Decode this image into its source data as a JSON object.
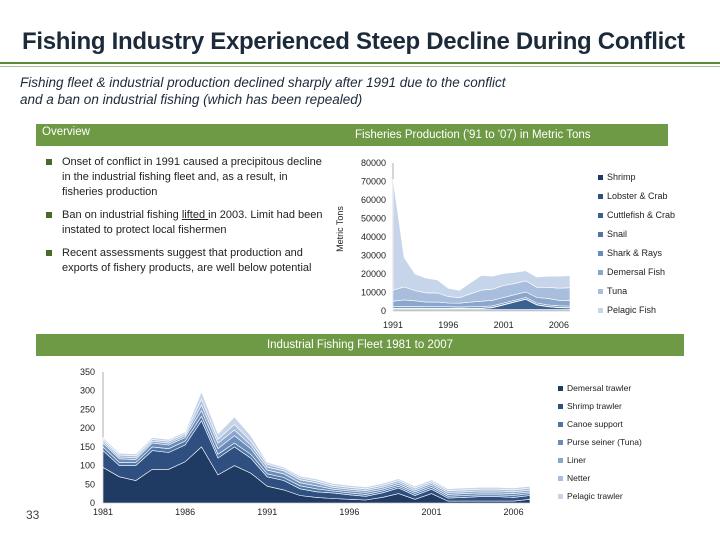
{
  "slide": {
    "title": "Fishing Industry Experienced Steep Decline During Conflict",
    "subtitle_line1": "Fishing fleet & industrial production declined sharply after 1991 due to the conflict",
    "subtitle_line2": "and a ban on industrial fishing (which has been repealed)",
    "page_number": "33"
  },
  "overview": {
    "heading": "Overview",
    "bullets": [
      {
        "text": "Onset of conflict in 1991 caused a precipitous decline in the industrial fishing fleet and, as a result, in fisheries production"
      },
      {
        "pre": "Ban on industrial fishing ",
        "underlined": "lifted ",
        "post": "in 2003. Limit had been instated to protect local fishermen"
      },
      {
        "text": "Recent assessments suggest that production and exports of fishery products, are well below potential"
      }
    ]
  },
  "colors": {
    "accent": "#6f9a45",
    "navy": "#1c2a3a"
  },
  "chart_data": [
    {
      "type": "area",
      "title": "Fisheries Production ('91 to '07) in Metric Tons",
      "ylabel": "Metric Tons",
      "xlabel": "",
      "ylim": [
        0,
        80000
      ],
      "yticks": [
        0,
        10000,
        20000,
        30000,
        40000,
        50000,
        60000,
        70000,
        80000
      ],
      "xtick_labels": [
        "1991",
        "1996",
        "2001",
        "2006"
      ],
      "x": [
        1991,
        1992,
        1993,
        1994,
        1995,
        1996,
        1997,
        1998,
        1999,
        2000,
        2001,
        2002,
        2003,
        2004,
        2005,
        2006,
        2007
      ],
      "legend_position": "right",
      "series": [
        {
          "name": "Shrimp",
          "color": "#1f3a63",
          "values": [
            500,
            500,
            500,
            500,
            500,
            500,
            500,
            500,
            500,
            500,
            500,
            500,
            500,
            500,
            500,
            500,
            500
          ]
        },
        {
          "name": "Lobster & Crab",
          "color": "#2e4f80",
          "values": [
            300,
            300,
            300,
            300,
            300,
            300,
            300,
            300,
            300,
            300,
            300,
            300,
            300,
            300,
            300,
            300,
            300
          ]
        },
        {
          "name": "Cuttlefish & Crab",
          "color": "#3a6190",
          "values": [
            500,
            500,
            500,
            500,
            500,
            500,
            500,
            500,
            500,
            1000,
            2500,
            4000,
            5500,
            2500,
            1500,
            1000,
            800
          ]
        },
        {
          "name": "Snail",
          "color": "#4f75a5",
          "values": [
            200,
            200,
            200,
            200,
            200,
            200,
            200,
            200,
            200,
            200,
            200,
            200,
            200,
            200,
            200,
            200,
            200
          ]
        },
        {
          "name": "Shark & Rays",
          "color": "#6a8cba",
          "values": [
            800,
            1000,
            1000,
            800,
            800,
            800,
            700,
            800,
            800,
            800,
            800,
            800,
            800,
            800,
            800,
            800,
            800
          ]
        },
        {
          "name": "Demersal Fish",
          "color": "#8aa6cc",
          "values": [
            3000,
            3500,
            3000,
            2500,
            2500,
            2000,
            2000,
            2500,
            3000,
            3000,
            3000,
            3000,
            3000,
            3000,
            3500,
            3000,
            3000
          ]
        },
        {
          "name": "Tuna",
          "color": "#a9bedc",
          "values": [
            6000,
            7000,
            5500,
            5000,
            5000,
            3500,
            3000,
            4500,
            6000,
            6000,
            6500,
            6000,
            6000,
            5500,
            6000,
            6500,
            7000
          ]
        },
        {
          "name": "Pelagic Fish",
          "color": "#c7d5ea",
          "values": [
            60000,
            16000,
            9000,
            8000,
            7000,
            4500,
            4000,
            6000,
            8000,
            7000,
            6500,
            6000,
            5500,
            5500,
            6000,
            6500,
            6500
          ]
        }
      ]
    },
    {
      "type": "area",
      "title": "Industrial Fishing Fleet 1981 to 2007",
      "xlabel": "",
      "ylabel": "",
      "ylim": [
        0,
        350
      ],
      "yticks": [
        0,
        50,
        100,
        150,
        200,
        250,
        300,
        350
      ],
      "xtick_labels": [
        "1981",
        "1986",
        "1991",
        "1996",
        "2001",
        "2006"
      ],
      "x": [
        1981,
        1982,
        1983,
        1984,
        1985,
        1986,
        1987,
        1988,
        1989,
        1990,
        1991,
        1992,
        1993,
        1994,
        1995,
        1996,
        1997,
        1998,
        1999,
        2000,
        2001,
        2002,
        2003,
        2004,
        2005,
        2006,
        2007
      ],
      "legend_position": "right",
      "series": [
        {
          "name": "Demersal trawler",
          "color": "#1f3a63",
          "values": [
            95,
            70,
            60,
            90,
            90,
            110,
            150,
            75,
            100,
            80,
            45,
            35,
            20,
            15,
            12,
            10,
            8,
            15,
            25,
            10,
            25,
            5,
            5,
            5,
            5,
            5,
            10
          ]
        },
        {
          "name": "Shrimp trawler",
          "color": "#2e4f80",
          "values": [
            45,
            30,
            40,
            50,
            45,
            45,
            70,
            45,
            50,
            40,
            25,
            25,
            18,
            15,
            15,
            12,
            10,
            12,
            15,
            10,
            12,
            8,
            10,
            12,
            12,
            10,
            10
          ]
        },
        {
          "name": "Canoe support",
          "color": "#4f75a5",
          "values": [
            10,
            8,
            8,
            10,
            10,
            10,
            12,
            10,
            10,
            10,
            8,
            8,
            8,
            8,
            5,
            5,
            5,
            5,
            5,
            5,
            5,
            5,
            5,
            5,
            5,
            5,
            5
          ]
        },
        {
          "name": "Purse seiner (Tuna)",
          "color": "#6a8cba",
          "values": [
            10,
            10,
            8,
            10,
            10,
            10,
            15,
            15,
            20,
            15,
            10,
            10,
            8,
            8,
            5,
            5,
            5,
            5,
            5,
            5,
            5,
            5,
            5,
            5,
            5,
            5,
            5
          ]
        },
        {
          "name": "Liner",
          "color": "#8aa6cc",
          "values": [
            5,
            5,
            5,
            5,
            5,
            5,
            15,
            15,
            15,
            10,
            8,
            8,
            8,
            8,
            5,
            5,
            5,
            5,
            5,
            5,
            5,
            5,
            5,
            5,
            5,
            5,
            5
          ]
        },
        {
          "name": "Netter",
          "color": "#a9bedc",
          "values": [
            5,
            5,
            5,
            5,
            5,
            5,
            15,
            10,
            15,
            10,
            8,
            5,
            5,
            5,
            5,
            5,
            5,
            5,
            5,
            5,
            5,
            5,
            5,
            5,
            5,
            5,
            5
          ]
        },
        {
          "name": "Pelagic trawler",
          "color": "#c7d5ea",
          "values": [
            5,
            5,
            5,
            5,
            5,
            5,
            20,
            15,
            20,
            15,
            5,
            5,
            5,
            5,
            5,
            5,
            5,
            5,
            5,
            5,
            5,
            5,
            5,
            5,
            5,
            5,
            5
          ]
        }
      ]
    }
  ]
}
